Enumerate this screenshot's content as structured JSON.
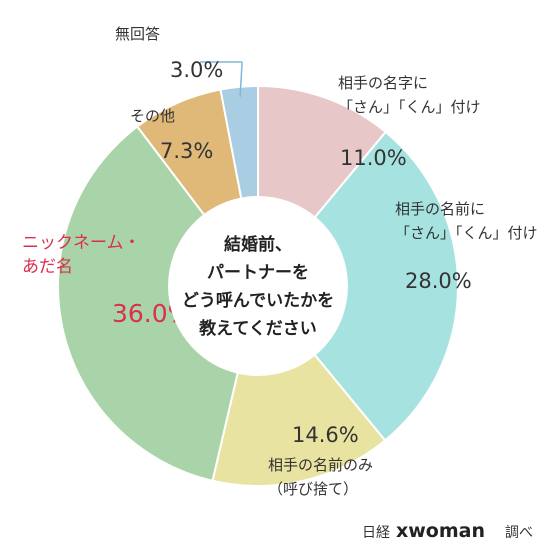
{
  "chart_data": {
    "type": "pie",
    "donut": true,
    "title_lines": [
      "結婚前、",
      "パートナーを",
      "どう呼んでいたかを",
      "教えてください"
    ],
    "slices": [
      {
        "label_lines": [
          "相手の名字に",
          "「さん」「くん」付け"
        ],
        "value": 11.0,
        "value_text": "11.0%",
        "color": "#e8c7c8"
      },
      {
        "label_lines": [
          "相手の名前に",
          "「さん」「くん」付け"
        ],
        "value": 28.0,
        "value_text": "28.0%",
        "color": "#a6e3e0"
      },
      {
        "label_lines": [
          "相手の名前のみ",
          "（呼び捨て）"
        ],
        "value": 14.6,
        "value_text": "14.6%",
        "color": "#e9e3a2"
      },
      {
        "label_lines": [
          "ニックネーム・",
          "あだ名"
        ],
        "value": 36.0,
        "value_text": "36.0%",
        "color": "#a9d3a8",
        "highlight": true,
        "highlight_color": "#d9304f"
      },
      {
        "label_lines": [
          "その他"
        ],
        "value": 7.3,
        "value_text": "7.3%",
        "color": "#e0b978"
      },
      {
        "label_lines": [
          "無回答"
        ],
        "value": 3.0,
        "value_text": "3.0%",
        "color": "#a9cde3"
      }
    ]
  },
  "credit": {
    "prefix": "日経",
    "brand": "xwoman",
    "suffix": "調べ"
  }
}
